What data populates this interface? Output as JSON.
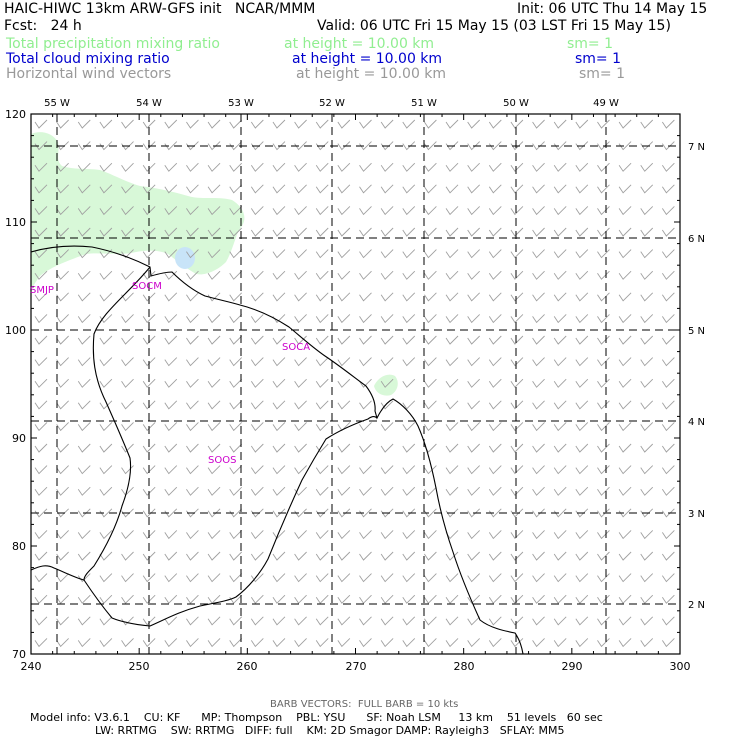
{
  "header": {
    "title": "HAIC-HIWC 13km ARW-GFS init   NCAR/MMM",
    "init": "Init: 06 UTC Thu 14 May 15",
    "fcst": "Fcst:   24 h",
    "valid": "Valid: 06 UTC Fri 15 May 15 (03 LST Fri 15 May 15)"
  },
  "fields": [
    {
      "name": "Total precipitation mixing ratio",
      "height": "at height = 10.00 km",
      "sm": "sm= 1",
      "color": "#90ee90"
    },
    {
      "name": "Total cloud mixing ratio",
      "height": "at height = 10.00 km",
      "sm": "sm= 1",
      "color": "#0000cd"
    },
    {
      "name": "Horizontal wind vectors",
      "height": "at height = 10.00 km",
      "sm": "sm= 1",
      "color": "#999999"
    }
  ],
  "map": {
    "lon_labels": [
      "55 W",
      "54 W",
      "53 W",
      "52 W",
      "51 W",
      "50 W",
      "49 W"
    ],
    "lat_labels": [
      "7 N",
      "6 N",
      "5 N",
      "4 N",
      "3 N",
      "2 N"
    ],
    "x_ticks": [
      "240",
      "250",
      "260",
      "270",
      "280",
      "290",
      "300"
    ],
    "y_ticks": [
      "120",
      "110",
      "100",
      "90",
      "80",
      "70"
    ],
    "stations": [
      "SMJP",
      "SOCM",
      "SOCA",
      "SOOS"
    ],
    "station_color": "#cc00cc",
    "precip_color": "#d8f8d8",
    "cloud_color": "#c8e4f8"
  },
  "footer": {
    "barb": "BARB VECTORS:  FULL BARB = 10 kts",
    "line1": "Model info: V3.6.1    CU: KF      MP: Thompson    PBL: YSU      SF: Noah LSM     13 km    51 levels   60 sec",
    "line2": "LW: RRTMG    SW: RRTMG   DIFF: full    KM: 2D Smagor DAMP: Rayleigh3   SFLAY: MM5"
  }
}
